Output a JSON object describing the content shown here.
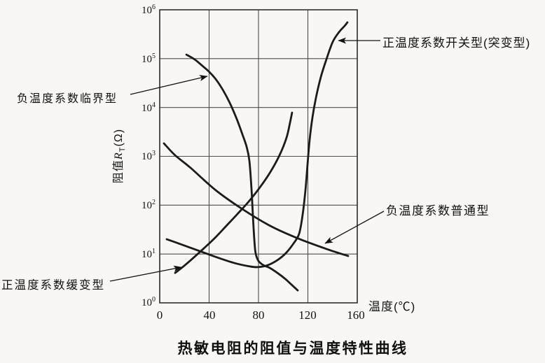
{
  "figure": {
    "caption": "热敏电阻的阻值与温度特性曲线"
  },
  "axes": {
    "x": {
      "label": "温度(℃)",
      "ticks": [
        "0",
        "40",
        "80",
        "120",
        "160"
      ],
      "min": 0,
      "max": 160
    },
    "y": {
      "label_prefix": "阻值",
      "label_symbol": "R",
      "label_sub": "T",
      "label_unit": "(Ω)",
      "scale": "log",
      "ticks": [
        {
          "base": "10",
          "exp": "6"
        },
        {
          "base": "10",
          "exp": "5"
        },
        {
          "base": "10",
          "exp": "4"
        },
        {
          "base": "10",
          "exp": "3"
        },
        {
          "base": "10",
          "exp": "2"
        },
        {
          "base": "10",
          "exp": "1"
        },
        {
          "base": "10",
          "exp": "0"
        }
      ]
    }
  },
  "chart_data": {
    "type": "line",
    "title": "热敏电阻的阻值与温度特性曲线",
    "xlabel": "温度(℃)",
    "ylabel": "阻值RT(Ω)",
    "x_range": [
      0,
      160
    ],
    "y_range": [
      1,
      1000000
    ],
    "y_scale": "log",
    "grid": true,
    "line_color": "#1b1b1b",
    "series": [
      {
        "id": "ntc-critical",
        "name": "负温度系数临界型",
        "points": [
          [
            21.6,
            121000
          ],
          [
            28.4,
            96000
          ],
          [
            35.2,
            69000
          ],
          [
            40.3,
            53000
          ],
          [
            45.4,
            38000
          ],
          [
            51.1,
            23000
          ],
          [
            56.7,
            12500
          ],
          [
            62.4,
            5800
          ],
          [
            67.0,
            2800
          ],
          [
            70.4,
            1560
          ],
          [
            72.6,
            810
          ],
          [
            74.3,
            216
          ],
          [
            75.5,
            58
          ],
          [
            76.6,
            20
          ],
          [
            77.7,
            10.4
          ],
          [
            80.0,
            7.2
          ],
          [
            84.0,
            5.9
          ],
          [
            89.1,
            5.2
          ],
          [
            95.3,
            4.1
          ],
          [
            101.6,
            3.1
          ],
          [
            107.2,
            2.3
          ],
          [
            111.8,
            1.8
          ]
        ]
      },
      {
        "id": "ptc-switch",
        "name": "正温度系数开关型(突变型)",
        "points": [
          [
            5.7,
            20
          ],
          [
            18.2,
            15.5
          ],
          [
            32.3,
            11.5
          ],
          [
            46.5,
            8.5
          ],
          [
            60.7,
            6.5
          ],
          [
            72.6,
            5.6
          ],
          [
            79.4,
            5.4
          ],
          [
            87.4,
            5.9
          ],
          [
            95.3,
            7.5
          ],
          [
            102.1,
            10.4
          ],
          [
            108.4,
            16.5
          ],
          [
            112.9,
            26
          ],
          [
            115.7,
            62
          ],
          [
            118.0,
            200
          ],
          [
            119.7,
            680
          ],
          [
            121.4,
            2170
          ],
          [
            123.7,
            6200
          ],
          [
            126.5,
            15700
          ],
          [
            130.5,
            42000
          ],
          [
            135.0,
            96000
          ],
          [
            140.1,
            219000
          ],
          [
            145.2,
            348000
          ],
          [
            149.8,
            469000
          ],
          [
            152.0,
            552000
          ]
        ]
      },
      {
        "id": "ntc-ordinary",
        "name": "负温度系数普通型",
        "points": [
          [
            3.4,
            1840
          ],
          [
            12.5,
            1050
          ],
          [
            25.0,
            580
          ],
          [
            45.4,
            202
          ],
          [
            67.0,
            83
          ],
          [
            89.6,
            37.6
          ],
          [
            112.3,
            20.7
          ],
          [
            135.0,
            12.7
          ],
          [
            152.6,
            9.1
          ]
        ]
      },
      {
        "id": "ptc-slow",
        "name": "正温度系数缓变型",
        "points": [
          [
            12.5,
            4.1
          ],
          [
            19.3,
            5.6
          ],
          [
            27.2,
            8.3
          ],
          [
            35.7,
            13
          ],
          [
            44.8,
            21.5
          ],
          [
            53.9,
            37.6
          ],
          [
            63.0,
            66
          ],
          [
            72.1,
            119
          ],
          [
            81.1,
            230
          ],
          [
            89.6,
            476
          ],
          [
            97.0,
            1050
          ],
          [
            102.7,
            2400
          ],
          [
            105.5,
            4800
          ],
          [
            107.2,
            7850
          ]
        ]
      }
    ]
  },
  "annotations": [
    {
      "id": "critical",
      "text": "负温度系数临界型",
      "from": [
        186,
        135
      ],
      "to": [
        296,
        109
      ]
    },
    {
      "id": "switch",
      "text": "正温度系数开关型(突变型)",
      "from": [
        543,
        58
      ],
      "to": [
        483,
        58
      ]
    },
    {
      "id": "ordinary",
      "text": "负温度系数普通型",
      "from": [
        548,
        302
      ],
      "to": [
        464,
        348
      ]
    },
    {
      "id": "slow",
      "text": "正温度系数缓变型",
      "from": [
        157,
        402
      ],
      "to": [
        259,
        382
      ]
    }
  ]
}
